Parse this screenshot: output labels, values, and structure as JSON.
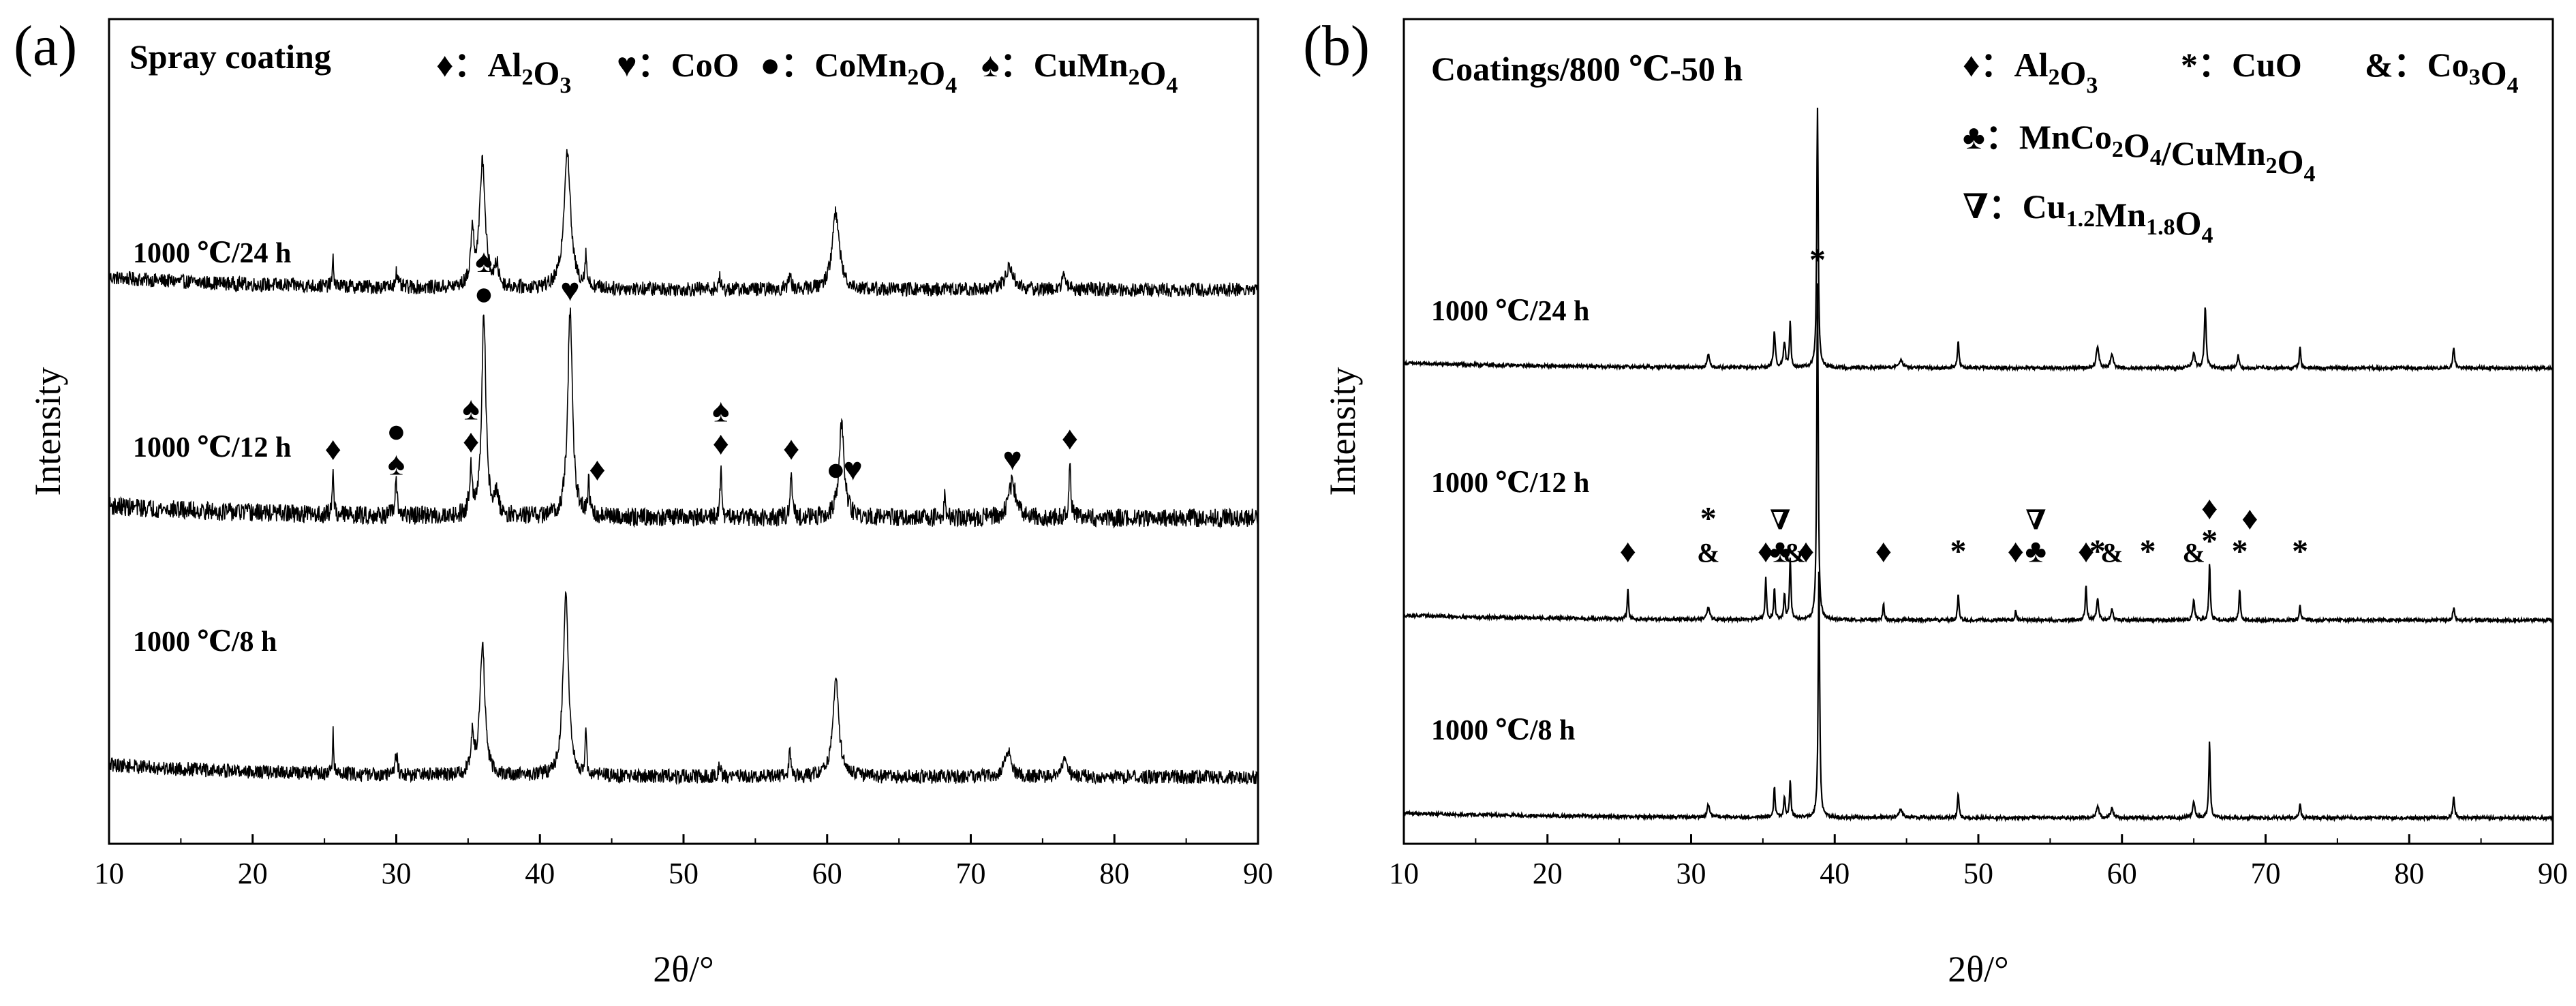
{
  "chart_data": [
    {
      "type": "line",
      "panel": "(a)",
      "title": "Spray coating",
      "xlabel": "2θ/°",
      "ylabel": "Intensity",
      "xlim": [
        10,
        90
      ],
      "xticks": [
        "10",
        "20",
        "30",
        "40",
        "50",
        "60",
        "70",
        "80",
        "90"
      ],
      "legend": [
        {
          "symbol": "♦",
          "name": "Al",
          "sub": "2",
          "name2": "O",
          "sub2": "3"
        },
        {
          "symbol": "♥",
          "name": "CoO"
        },
        {
          "symbol": "●",
          "name": "CoMn",
          "sub": "2",
          "name2": "O",
          "sub2": "4"
        },
        {
          "symbol": "♠",
          "name": "CuMn",
          "sub": "2",
          "name2": "O",
          "sub2": "4"
        }
      ],
      "series": [
        {
          "name": "1000 ℃/24 h",
          "baseline": 0.3,
          "noise": 0.07,
          "peaks": [
            {
              "x": 25.6,
              "h": 0.25,
              "w": 0.12
            },
            {
              "x": 30.0,
              "h": 0.15,
              "w": 0.2
            },
            {
              "x": 35.3,
              "h": 0.5,
              "w": 0.3
            },
            {
              "x": 36.0,
              "h": 1.25,
              "w": 0.45
            },
            {
              "x": 37.0,
              "h": 0.2,
              "w": 0.3
            },
            {
              "x": 41.9,
              "h": 1.35,
              "w": 0.55
            },
            {
              "x": 43.2,
              "h": 0.3,
              "w": 0.15
            },
            {
              "x": 52.5,
              "h": 0.12,
              "w": 0.15
            },
            {
              "x": 57.4,
              "h": 0.15,
              "w": 0.2
            },
            {
              "x": 60.6,
              "h": 0.75,
              "w": 0.6
            },
            {
              "x": 72.7,
              "h": 0.22,
              "w": 0.7
            },
            {
              "x": 76.5,
              "h": 0.12,
              "w": 0.4
            }
          ]
        },
        {
          "name": "1000 ℃/12 h",
          "baseline": 0.3,
          "noise": 0.09,
          "peaks": [
            {
              "x": 25.6,
              "h": 0.45,
              "w": 0.12
            },
            {
              "x": 30.0,
              "h": 0.3,
              "w": 0.2
            },
            {
              "x": 35.2,
              "h": 0.45,
              "w": 0.25
            },
            {
              "x": 36.1,
              "h": 1.95,
              "w": 0.35
            },
            {
              "x": 37.0,
              "h": 0.2,
              "w": 0.3
            },
            {
              "x": 42.1,
              "h": 2.0,
              "w": 0.4
            },
            {
              "x": 43.4,
              "h": 0.3,
              "w": 0.15
            },
            {
              "x": 52.6,
              "h": 0.5,
              "w": 0.12
            },
            {
              "x": 57.5,
              "h": 0.45,
              "w": 0.15
            },
            {
              "x": 61.0,
              "h": 0.9,
              "w": 0.45
            },
            {
              "x": 68.2,
              "h": 0.2,
              "w": 0.15
            },
            {
              "x": 72.9,
              "h": 0.35,
              "w": 0.6
            },
            {
              "x": 76.9,
              "h": 0.55,
              "w": 0.15
            }
          ]
        },
        {
          "name": "1000 ℃/8 h",
          "baseline": 0.3,
          "noise": 0.07,
          "peaks": [
            {
              "x": 25.6,
              "h": 0.4,
              "w": 0.1
            },
            {
              "x": 30.0,
              "h": 0.2,
              "w": 0.2
            },
            {
              "x": 35.3,
              "h": 0.35,
              "w": 0.25
            },
            {
              "x": 36.0,
              "h": 1.3,
              "w": 0.4
            },
            {
              "x": 41.8,
              "h": 1.75,
              "w": 0.45
            },
            {
              "x": 43.2,
              "h": 0.4,
              "w": 0.12
            },
            {
              "x": 52.5,
              "h": 0.15,
              "w": 0.15
            },
            {
              "x": 57.4,
              "h": 0.25,
              "w": 0.15
            },
            {
              "x": 60.6,
              "h": 0.95,
              "w": 0.5
            },
            {
              "x": 72.6,
              "h": 0.25,
              "w": 0.6
            },
            {
              "x": 76.5,
              "h": 0.15,
              "w": 0.5
            }
          ]
        }
      ],
      "annotations": [
        {
          "series": 1,
          "x": 25.6,
          "symbol": "♦",
          "level": 1
        },
        {
          "series": 1,
          "x": 30.0,
          "symbol": "♠",
          "level": 1
        },
        {
          "series": 1,
          "x": 30.0,
          "symbol": "●",
          "level": 2
        },
        {
          "series": 1,
          "x": 35.2,
          "symbol": "♦",
          "level": 1
        },
        {
          "series": 1,
          "x": 35.2,
          "symbol": "♠",
          "level": 2
        },
        {
          "series": 1,
          "x": 36.1,
          "symbol": "●",
          "level": 1
        },
        {
          "series": 1,
          "x": 36.1,
          "symbol": "♠",
          "level": 2
        },
        {
          "series": 1,
          "x": 42.1,
          "symbol": "♥",
          "level": 1
        },
        {
          "series": 1,
          "x": 44.0,
          "symbol": "♦",
          "level": 1
        },
        {
          "series": 1,
          "x": 52.6,
          "symbol": "♦",
          "level": 1
        },
        {
          "series": 1,
          "x": 52.6,
          "symbol": "♠",
          "level": 2
        },
        {
          "series": 1,
          "x": 57.5,
          "symbol": "♦",
          "level": 1
        },
        {
          "series": 1,
          "x": 60.6,
          "symbol": "●",
          "level": 1
        },
        {
          "series": 1,
          "x": 61.8,
          "symbol": "♥",
          "level": 1
        },
        {
          "series": 1,
          "x": 72.9,
          "symbol": "♥",
          "level": 1
        },
        {
          "series": 1,
          "x": 76.9,
          "symbol": "♦",
          "level": 1
        }
      ]
    },
    {
      "type": "line",
      "panel": "(b)",
      "title": "Coatings/800 ℃-50 h",
      "xlabel": "2θ/°",
      "ylabel": "Intensity",
      "xlim": [
        10,
        90
      ],
      "xticks": [
        "10",
        "20",
        "30",
        "40",
        "50",
        "60",
        "70",
        "80",
        "90"
      ],
      "legend": [
        {
          "symbol": "♦",
          "name": "Al",
          "sub": "2",
          "name2": "O",
          "sub2": "3"
        },
        {
          "symbol": "*",
          "name": "CuO"
        },
        {
          "symbol": "&",
          "name": "Co",
          "sub": "3",
          "name2": "O",
          "sub2": "4"
        },
        {
          "symbol": "♣",
          "name": "MnCo",
          "sub": "2",
          "name2": "O",
          "sub2": "4",
          "name3": "/CuMn",
          "sub3": "2",
          "name4": "O",
          "sub4": "4"
        },
        {
          "symbol": "∇",
          "name": "Cu",
          "sub": "1.2",
          "name2": "Mn",
          "sub2": "1.8",
          "name3": "O",
          "sub3": "4"
        }
      ],
      "series": [
        {
          "name": "1000 ℃/24 h",
          "baseline": 0.1,
          "noise": 0.02,
          "peaks": [
            {
              "x": 31.2,
              "h": 0.12,
              "w": 0.2
            },
            {
              "x": 35.8,
              "h": 0.35,
              "w": 0.15
            },
            {
              "x": 36.5,
              "h": 0.25,
              "w": 0.15
            },
            {
              "x": 36.9,
              "h": 0.45,
              "w": 0.12
            },
            {
              "x": 38.8,
              "h": 2.55,
              "w": 0.12
            },
            {
              "x": 44.6,
              "h": 0.08,
              "w": 0.3
            },
            {
              "x": 48.6,
              "h": 0.28,
              "w": 0.12
            },
            {
              "x": 58.3,
              "h": 0.22,
              "w": 0.2
            },
            {
              "x": 59.3,
              "h": 0.15,
              "w": 0.2
            },
            {
              "x": 65.0,
              "h": 0.15,
              "w": 0.2
            },
            {
              "x": 65.8,
              "h": 0.6,
              "w": 0.15
            },
            {
              "x": 68.1,
              "h": 0.12,
              "w": 0.15
            },
            {
              "x": 72.4,
              "h": 0.2,
              "w": 0.12
            },
            {
              "x": 83.1,
              "h": 0.2,
              "w": 0.15
            }
          ]
        },
        {
          "name": "1000 ℃/12 h",
          "baseline": 0.1,
          "noise": 0.02,
          "peaks": [
            {
              "x": 25.6,
              "h": 0.3,
              "w": 0.1
            },
            {
              "x": 31.2,
              "h": 0.12,
              "w": 0.2
            },
            {
              "x": 35.2,
              "h": 0.4,
              "w": 0.12
            },
            {
              "x": 35.8,
              "h": 0.3,
              "w": 0.12
            },
            {
              "x": 36.5,
              "h": 0.25,
              "w": 0.12
            },
            {
              "x": 36.9,
              "h": 0.6,
              "w": 0.12
            },
            {
              "x": 38.8,
              "h": 3.3,
              "w": 0.12
            },
            {
              "x": 43.4,
              "h": 0.18,
              "w": 0.1
            },
            {
              "x": 48.6,
              "h": 0.25,
              "w": 0.12
            },
            {
              "x": 52.6,
              "h": 0.1,
              "w": 0.1
            },
            {
              "x": 57.5,
              "h": 0.35,
              "w": 0.12
            },
            {
              "x": 58.3,
              "h": 0.22,
              "w": 0.15
            },
            {
              "x": 59.3,
              "h": 0.12,
              "w": 0.15
            },
            {
              "x": 65.0,
              "h": 0.2,
              "w": 0.15
            },
            {
              "x": 66.1,
              "h": 0.55,
              "w": 0.12
            },
            {
              "x": 68.2,
              "h": 0.3,
              "w": 0.12
            },
            {
              "x": 72.4,
              "h": 0.15,
              "w": 0.12
            },
            {
              "x": 83.1,
              "h": 0.12,
              "w": 0.15
            }
          ]
        },
        {
          "name": "1000 ℃/8 h",
          "baseline": 0.1,
          "noise": 0.02,
          "peaks": [
            {
              "x": 31.2,
              "h": 0.12,
              "w": 0.2
            },
            {
              "x": 35.8,
              "h": 0.3,
              "w": 0.12
            },
            {
              "x": 36.5,
              "h": 0.2,
              "w": 0.12
            },
            {
              "x": 36.9,
              "h": 0.35,
              "w": 0.12
            },
            {
              "x": 38.9,
              "h": 2.45,
              "w": 0.12
            },
            {
              "x": 44.6,
              "h": 0.08,
              "w": 0.3
            },
            {
              "x": 48.6,
              "h": 0.25,
              "w": 0.12
            },
            {
              "x": 58.3,
              "h": 0.12,
              "w": 0.2
            },
            {
              "x": 59.3,
              "h": 0.1,
              "w": 0.2
            },
            {
              "x": 65.0,
              "h": 0.15,
              "w": 0.2
            },
            {
              "x": 66.1,
              "h": 0.75,
              "w": 0.12
            },
            {
              "x": 72.4,
              "h": 0.15,
              "w": 0.12
            },
            {
              "x": 83.1,
              "h": 0.2,
              "w": 0.15
            }
          ]
        }
      ],
      "annotations": [
        {
          "series": 1,
          "x": 38.8,
          "symbol": "*",
          "level": 1
        },
        {
          "series": 1,
          "x": 25.6,
          "symbol": "♦",
          "level": 1
        },
        {
          "series": 1,
          "x": 31.2,
          "symbol": "&",
          "level": 1
        },
        {
          "series": 1,
          "x": 31.2,
          "symbol": "*",
          "level": 2
        },
        {
          "series": 1,
          "x": 35.2,
          "symbol": "♦",
          "level": 1
        },
        {
          "series": 1,
          "x": 36.2,
          "symbol": "♣",
          "level": 1
        },
        {
          "series": 1,
          "x": 36.2,
          "symbol": "∇",
          "level": 2
        },
        {
          "series": 1,
          "x": 37.2,
          "symbol": "&",
          "level": 1
        },
        {
          "series": 1,
          "x": 38.0,
          "symbol": "♦",
          "level": 1
        },
        {
          "series": 1,
          "x": 43.4,
          "symbol": "♦",
          "level": 1
        },
        {
          "series": 1,
          "x": 48.6,
          "symbol": "*",
          "level": 1
        },
        {
          "series": 1,
          "x": 52.6,
          "symbol": "♦",
          "level": 1
        },
        {
          "series": 1,
          "x": 54.0,
          "symbol": "♣",
          "level": 1
        },
        {
          "series": 1,
          "x": 54.0,
          "symbol": "∇",
          "level": 2
        },
        {
          "series": 1,
          "x": 57.5,
          "symbol": "♦",
          "level": 1
        },
        {
          "series": 1,
          "x": 58.3,
          "symbol": "*",
          "level": 1
        },
        {
          "series": 1,
          "x": 59.3,
          "symbol": "&",
          "level": 1
        },
        {
          "series": 1,
          "x": 61.8,
          "symbol": "*",
          "level": 1
        },
        {
          "series": 1,
          "x": 65.0,
          "symbol": "&",
          "level": 1
        },
        {
          "series": 1,
          "x": 66.1,
          "symbol": "*",
          "level": 1
        },
        {
          "series": 1,
          "x": 66.1,
          "symbol": "♦",
          "level": 2
        },
        {
          "series": 1,
          "x": 68.2,
          "symbol": "*",
          "level": 1
        },
        {
          "series": 1,
          "x": 68.9,
          "symbol": "♦",
          "level": 2
        },
        {
          "series": 1,
          "x": 72.4,
          "symbol": "*",
          "level": 1
        }
      ]
    }
  ]
}
